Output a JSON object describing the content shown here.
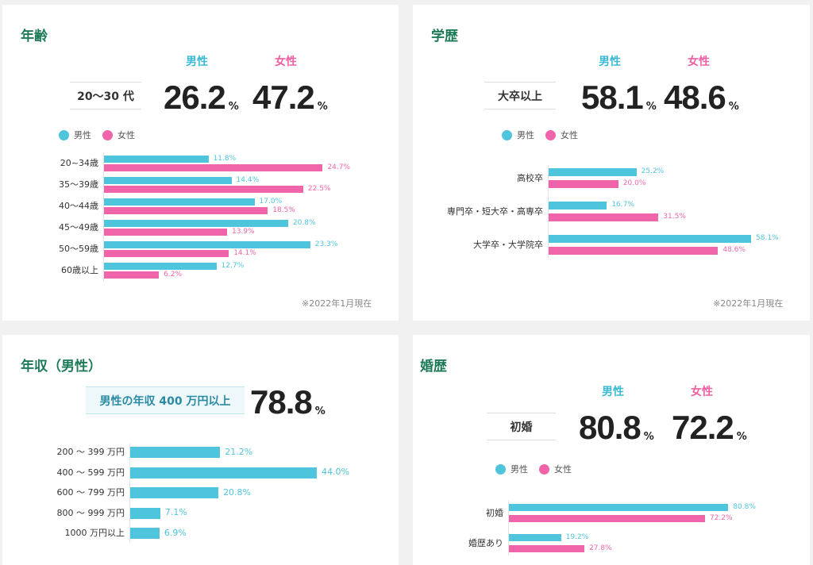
{
  "colors": {
    "male": "#4ec5dc",
    "female": "#f065a9",
    "title": "#1d7a57"
  },
  "legend": {
    "male": "男性",
    "female": "女性"
  },
  "chart_data": [
    {
      "id": "age",
      "type": "bar",
      "orientation": "horizontal",
      "title": "年齢",
      "highlight": {
        "label": "20〜30 代",
        "male": "26.2",
        "female": "47.2",
        "unit": "%"
      },
      "categories": [
        "20~34歳",
        "35〜39歳",
        "40〜44歳",
        "45〜49歳",
        "50〜59歳",
        "60歳以上"
      ],
      "series": [
        {
          "name": "男性",
          "values": [
            11.8,
            14.4,
            17.0,
            20.8,
            23.3,
            12.7
          ],
          "labels": [
            "11.8%",
            "14.4%",
            "17.0%",
            "20.8%",
            "23.3%",
            "12.7%"
          ]
        },
        {
          "name": "女性",
          "values": [
            24.7,
            22.5,
            18.5,
            13.9,
            14.1,
            6.2
          ],
          "labels": [
            "24.7%",
            "22.5%",
            "18.5%",
            "13.9%",
            "14.1%",
            "6.2%"
          ]
        }
      ],
      "note": "※2022年1月現在"
    },
    {
      "id": "edu",
      "type": "bar",
      "orientation": "horizontal",
      "title": "学歴",
      "highlight": {
        "label": "大卒以上",
        "male": "58.1",
        "female": "48.6",
        "unit": "%"
      },
      "categories": [
        "高校卒",
        "専門卒・短大卒・高専卒",
        "大学卒・大学院卒"
      ],
      "series": [
        {
          "name": "男性",
          "values": [
            25.2,
            16.7,
            58.1
          ],
          "labels": [
            "25.2%",
            "16.7%",
            "58.1%"
          ]
        },
        {
          "name": "女性",
          "values": [
            20.0,
            31.5,
            48.6
          ],
          "labels": [
            "20.0%",
            "31.5%",
            "48.6%"
          ]
        }
      ],
      "note": "※2022年1月現在"
    },
    {
      "id": "income",
      "type": "bar",
      "orientation": "horizontal",
      "title": "年収（男性）",
      "highlight": {
        "label": "男性の年収 400 万円以上",
        "male": "78.8",
        "unit": "%"
      },
      "categories": [
        "200 〜 399 万円",
        "400 〜 599 万円",
        "600 〜 799 万円",
        "800 〜 999 万円",
        "1000 万円以上"
      ],
      "series": [
        {
          "values": [
            21.2,
            44.0,
            20.8,
            7.1,
            6.9
          ],
          "labels": [
            "21.2%",
            "44.0%",
            "20.8%",
            "7.1%",
            "6.9%"
          ]
        }
      ]
    },
    {
      "id": "marriage",
      "type": "bar",
      "orientation": "horizontal",
      "title": "婚歴",
      "highlight": {
        "label": "初婚",
        "male": "80.8",
        "female": "72.2",
        "unit": "%"
      },
      "categories": [
        "初婚",
        "婚歴あり"
      ],
      "series": [
        {
          "name": "男性",
          "values": [
            80.8,
            19.2
          ],
          "labels": [
            "80.8%",
            "19.2%"
          ]
        },
        {
          "name": "女性",
          "values": [
            72.2,
            27.8
          ],
          "labels": [
            "72.2%",
            "27.8%"
          ]
        }
      ]
    }
  ]
}
